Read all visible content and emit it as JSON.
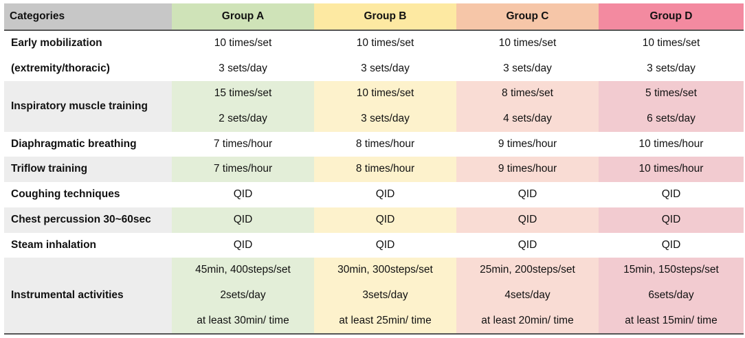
{
  "header": {
    "categories": "Categories",
    "group_a": "Group A",
    "group_b": "Group B",
    "group_c": "Group C",
    "group_d": "Group D"
  },
  "colors": {
    "group_a": "#cfe3b8",
    "group_b": "#fde9a2",
    "group_c": "#f6c6a8",
    "group_d": "#f38aa0"
  },
  "rows": [
    {
      "category": [
        "Early mobilization",
        "(extremity/thoracic)"
      ],
      "a": [
        "10 times/set",
        "3 sets/day"
      ],
      "b": [
        "10 times/set",
        "3 sets/day"
      ],
      "c": [
        "10 times/set",
        "3 sets/day"
      ],
      "d": [
        "10 times/set",
        "3 sets/day"
      ]
    },
    {
      "category": [
        "Inspiratory muscle training"
      ],
      "a": [
        "15 times/set",
        "2 sets/day"
      ],
      "b": [
        "10 times/set",
        "3 sets/day"
      ],
      "c": [
        "8 times/set",
        "4 sets/day"
      ],
      "d": [
        "5 times/set",
        "6 sets/day"
      ]
    },
    {
      "category": [
        "Diaphragmatic breathing"
      ],
      "a": [
        "7 times/hour"
      ],
      "b": [
        "8 times/hour"
      ],
      "c": [
        "9 times/hour"
      ],
      "d": [
        "10 times/hour"
      ]
    },
    {
      "category": [
        "Triflow training"
      ],
      "a": [
        "7 times/hour"
      ],
      "b": [
        "8 times/hour"
      ],
      "c": [
        "9 times/hour"
      ],
      "d": [
        "10 times/hour"
      ]
    },
    {
      "category": [
        "Coughing techniques"
      ],
      "a": [
        "QID"
      ],
      "b": [
        "QID"
      ],
      "c": [
        "QID"
      ],
      "d": [
        "QID"
      ]
    },
    {
      "category": [
        "Chest percussion 30~60sec"
      ],
      "a": [
        "QID"
      ],
      "b": [
        "QID"
      ],
      "c": [
        "QID"
      ],
      "d": [
        "QID"
      ]
    },
    {
      "category": [
        "Steam inhalation"
      ],
      "a": [
        "QID"
      ],
      "b": [
        "QID"
      ],
      "c": [
        "QID"
      ],
      "d": [
        "QID"
      ]
    },
    {
      "category": [
        "Instrumental activities"
      ],
      "a": [
        "45min, 400steps/set",
        "2sets/day",
        "at least 30min/ time"
      ],
      "b": [
        "30min, 300steps/set",
        "3sets/day",
        "at least 25min/ time"
      ],
      "c": [
        "25min, 200steps/set",
        "4sets/day",
        "at least 20min/ time"
      ],
      "d": [
        "15min, 150steps/set",
        "6sets/day",
        "at least 15min/ time"
      ]
    }
  ]
}
